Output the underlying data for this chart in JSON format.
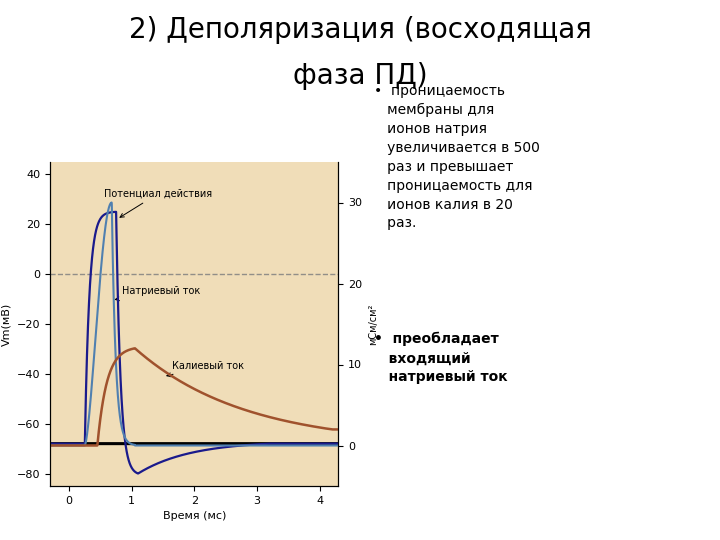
{
  "title_line1": "2) Деполяризация (восходящая",
  "title_line2": "фаза ПД)",
  "title_fontsize": 20,
  "bg_color": "#ffffff",
  "plot_bg_color": "#f0ddb8",
  "left_ylabel": "Vm(мВ)",
  "right_ylabel": "мСм/см²",
  "xlabel": "Время (мс)",
  "left_ylim": [
    -85,
    45
  ],
  "right_ylim": [
    -5,
    35
  ],
  "xlim": [
    -0.3,
    4.3
  ],
  "left_yticks": [
    -80,
    -60,
    -40,
    -20,
    0,
    20,
    40
  ],
  "right_yticks": [
    0,
    10,
    20,
    30
  ],
  "xticks": [
    0,
    1,
    2,
    3,
    4
  ],
  "annotation_pd": "Потенциал действия",
  "annotation_na": "Натриевый ток",
  "annotation_k": "Калиевый ток",
  "color_vm": "#1a1a8c",
  "color_na": "#5080b0",
  "color_k": "#a0522d",
  "color_rest": "#000000",
  "bullet1_lines": [
    "•  проницаемость",
    "   мембраны для",
    "   ионов натрия",
    "   увеличивается в 500",
    "   раз и превышает",
    "   проницаемость для",
    "   ионов калия в 20",
    "   раз."
  ],
  "bullet2_lines": [
    "•  преобладает",
    "   входящий",
    "   натриевый ток"
  ]
}
